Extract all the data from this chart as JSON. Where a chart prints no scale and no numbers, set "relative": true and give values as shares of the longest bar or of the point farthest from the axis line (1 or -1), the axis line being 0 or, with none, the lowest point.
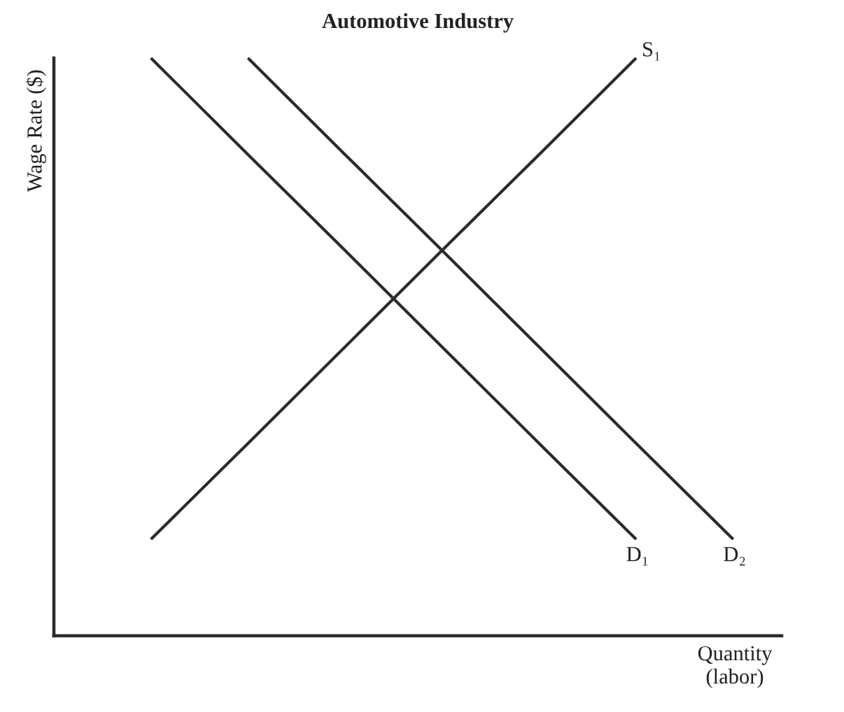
{
  "chart_data": {
    "type": "line",
    "title": "Automotive Industry",
    "xlabel": "Quantity\n(labor)",
    "ylabel": "Wage Rate ($)",
    "relative": true,
    "categories": [
      null,
      null,
      null,
      null,
      null,
      null,
      null
    ],
    "series": [
      {
        "name": "D₁",
        "color": "#2b2b2b",
        "values": [
          1,
          0.833,
          0.667,
          0.5,
          0.333,
          0.167,
          null
        ]
      },
      {
        "name": "D₂",
        "color": "#2b2b2b",
        "values": [
          null,
          1,
          0.833,
          0.667,
          0.5,
          0.333,
          0.167
        ]
      },
      {
        "name": "S₁",
        "color": "#2b2b2b",
        "values": [
          0.167,
          0.333,
          0.5,
          0.667,
          0.833,
          1,
          null
        ]
      }
    ]
  }
}
